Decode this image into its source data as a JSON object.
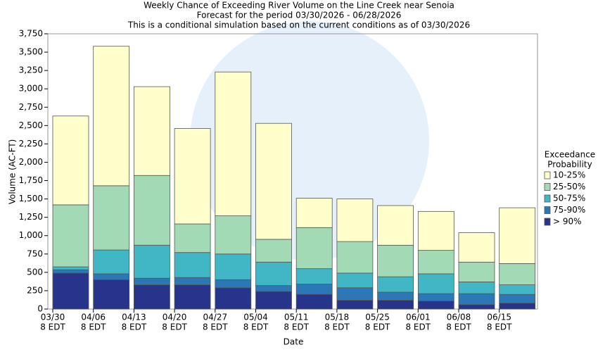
{
  "chart_data": {
    "type": "stacked_bar",
    "title": "Weekly Chance of Exceeding River Volume on the Line Creek near Senoia",
    "subtitle": "Forecast for the period 03/30/2026 - 06/28/2026",
    "note": "This is a conditional simulation based on the current conditions as of 03/30/2026",
    "x_label": "Date",
    "y_label": "Volume (AC-FT)",
    "categories": [
      "03/30",
      "04/06",
      "04/13",
      "04/20",
      "04/27",
      "05/04",
      "05/11",
      "05/18",
      "05/25",
      "06/01",
      "06/08",
      "06/15"
    ],
    "x_tick_sublabel": "8 EDT",
    "series": [
      {
        "name": "> 90%",
        "color": "#27348b",
        "values": [
          490,
          400,
          330,
          330,
          290,
          240,
          200,
          120,
          120,
          110,
          60,
          80
        ]
      },
      {
        "name": "75-90%",
        "color": "#2c78b6",
        "values": [
          45,
          80,
          90,
          100,
          110,
          80,
          140,
          170,
          110,
          100,
          150,
          120
        ]
      },
      {
        "name": "50-75%",
        "color": "#41b6c4",
        "values": [
          40,
          325,
          450,
          340,
          350,
          320,
          210,
          200,
          210,
          270,
          160,
          130
        ]
      },
      {
        "name": "25-50%",
        "color": "#a1dab4",
        "values": [
          845,
          875,
          950,
          390,
          520,
          310,
          560,
          430,
          430,
          320,
          270,
          290
        ]
      },
      {
        "name": "10-25%",
        "color": "#ffffcc",
        "values": [
          1210,
          1900,
          1210,
          1300,
          1960,
          1580,
          400,
          580,
          540,
          530,
          400,
          760
        ]
      }
    ],
    "legend_title": [
      "Exceedance",
      "Probability"
    ],
    "legend_position": "right",
    "ylim": [
      0,
      3750
    ],
    "yticks": [
      0,
      250,
      500,
      750,
      {
        "value": 1000,
        "label": "1,000"
      },
      {
        "value": 1250,
        "label": "1,250"
      },
      {
        "value": 1500,
        "label": "1,500"
      },
      {
        "value": 1750,
        "label": "1,750"
      },
      {
        "value": 2000,
        "label": "2,000"
      },
      {
        "value": 2250,
        "label": "2,250"
      },
      {
        "value": 2500,
        "label": "2,500"
      },
      {
        "value": 2750,
        "label": "2,750"
      },
      {
        "value": 3000,
        "label": "3,000"
      },
      {
        "value": 3250,
        "label": "3,250"
      },
      {
        "value": 3500,
        "label": "3,500"
      },
      {
        "value": 3750,
        "label": "3,750"
      }
    ],
    "grid": false
  }
}
